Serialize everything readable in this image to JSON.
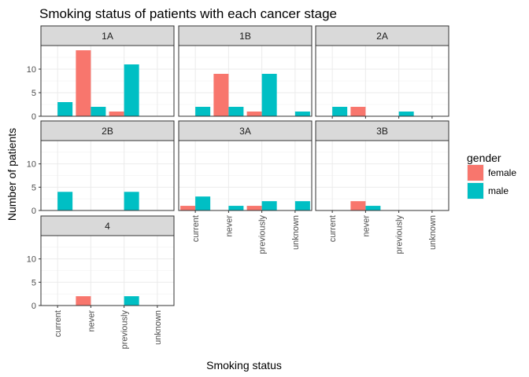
{
  "chart_data": {
    "type": "bar",
    "title": "Smoking status of patients with each cancer stage",
    "xlabel": "Smoking status",
    "ylabel": "Number of patients",
    "categories": [
      "current",
      "never",
      "previously",
      "unknown"
    ],
    "ylim": [
      0,
      15
    ],
    "yticks": [
      0,
      5,
      10
    ],
    "grid": true,
    "legend": {
      "title": "gender",
      "position": "right",
      "entries": [
        {
          "name": "female",
          "color": "#F8766D"
        },
        {
          "name": "male",
          "color": "#00BFC4"
        }
      ]
    },
    "panels": [
      {
        "label": "1A",
        "series": [
          {
            "name": "female",
            "values": [
              0,
              14,
              1,
              0
            ]
          },
          {
            "name": "male",
            "values": [
              3,
              2,
              11,
              0
            ]
          }
        ]
      },
      {
        "label": "1B",
        "series": [
          {
            "name": "female",
            "values": [
              0,
              9,
              1,
              0
            ]
          },
          {
            "name": "male",
            "values": [
              2,
              2,
              9,
              1
            ]
          }
        ]
      },
      {
        "label": "2A",
        "series": [
          {
            "name": "female",
            "values": [
              0,
              2,
              0,
              0
            ]
          },
          {
            "name": "male",
            "values": [
              2,
              0,
              1,
              0
            ]
          }
        ]
      },
      {
        "label": "2B",
        "series": [
          {
            "name": "female",
            "values": [
              0,
              0,
              0,
              0
            ]
          },
          {
            "name": "male",
            "values": [
              4,
              0,
              4,
              0
            ]
          }
        ]
      },
      {
        "label": "3A",
        "series": [
          {
            "name": "female",
            "values": [
              1,
              0,
              1,
              0
            ]
          },
          {
            "name": "male",
            "values": [
              3,
              1,
              2,
              2
            ]
          }
        ]
      },
      {
        "label": "3B",
        "series": [
          {
            "name": "female",
            "values": [
              0,
              2,
              0,
              0
            ]
          },
          {
            "name": "male",
            "values": [
              0,
              1,
              0,
              0
            ]
          }
        ]
      },
      {
        "label": "4",
        "series": [
          {
            "name": "female",
            "values": [
              0,
              2,
              0,
              0
            ]
          },
          {
            "name": "male",
            "values": [
              0,
              0,
              2,
              0
            ]
          }
        ]
      }
    ]
  }
}
